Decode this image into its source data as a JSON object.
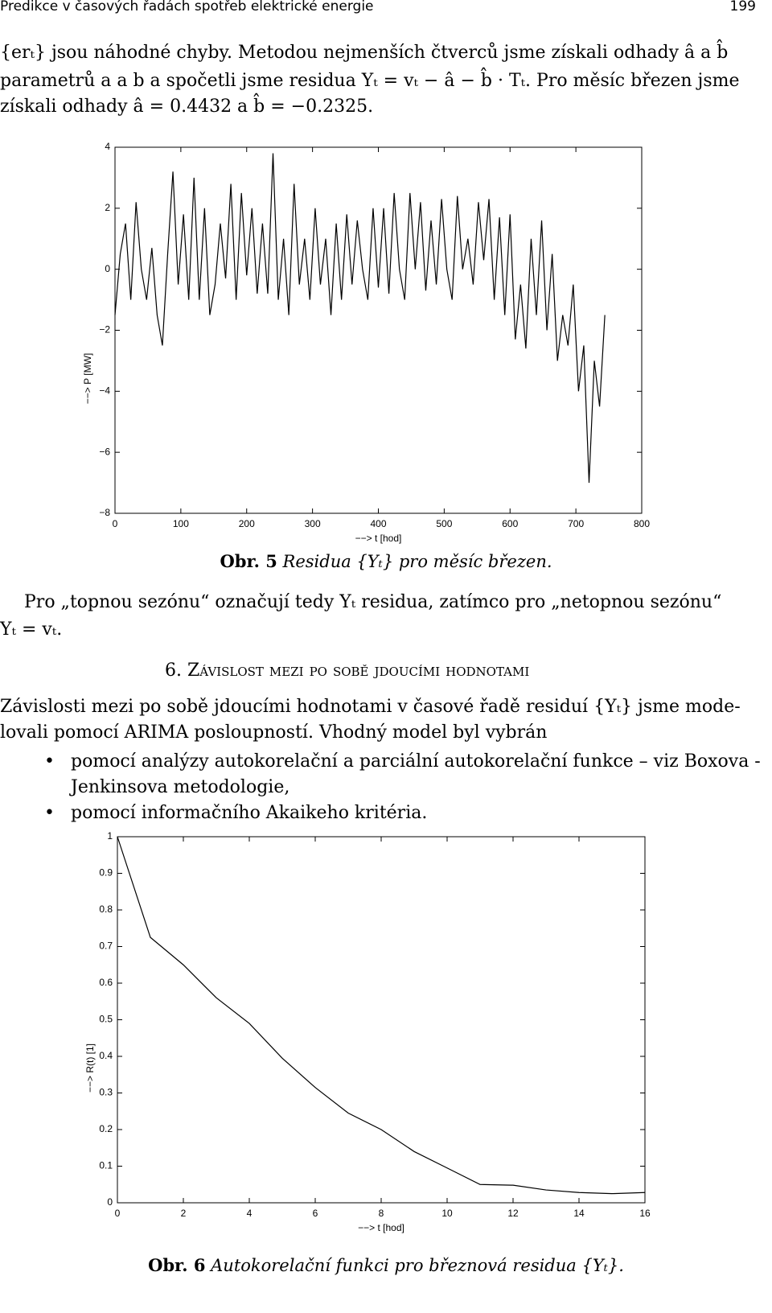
{
  "header": {
    "title": "Predikce v časových řadách spotřeb elektrické energie",
    "page": "199"
  },
  "intro": [
    "{erₜ} jsou náhodné chyby. Metodou nejmenších čtverců jsme získali odhady â a b̂",
    "parametrů a a b a spočetli jsme residua Yₜ = vₜ − â − b̂ · Tₜ. Pro měsíc březen jsme",
    "získali odhady â = 0.4432 a b̂ = −0.2325."
  ],
  "caption1": {
    "label": "Obr. 5",
    "text": "Residua {Yₜ} pro měsíc březen."
  },
  "para2": [
    "Pro „topnou sezónu“ označují tedy Yₜ residua, zatímco pro „netopnou sezónu“",
    "Yₜ = vₜ."
  ],
  "section": "6. Závislost mezi po sobě jdoucími hodnotami",
  "para3": [
    "Závislosti mezi po sobě jdoucími hodnotami v časové řadě residuí {Yₜ} jsme mode-",
    "lovali pomocí ARIMA posloupností. Vhodný model byl vybrán"
  ],
  "bullets": [
    [
      "pomocí analýzy autokorelační a parciální autokorelační funkce – viz Boxova -",
      "Jenkinsova metodologie,"
    ],
    [
      "pomocí informačního Akaikeho kritéria."
    ]
  ],
  "caption2": {
    "label": "Obr. 6",
    "text": "Autokorelační funkci pro březnová residua {Yₜ}."
  },
  "chart_data": [
    {
      "type": "line",
      "xlabel": "−−> t [hod]",
      "ylabel": "−−> P [MW]",
      "xlim": [
        0,
        800
      ],
      "ylim": [
        -8,
        4
      ],
      "xticks": [
        0,
        100,
        200,
        300,
        400,
        500,
        600,
        700,
        800
      ],
      "yticks": [
        {
          "value": -8,
          "label": "−8"
        },
        {
          "value": -6,
          "label": "−6"
        },
        {
          "value": -4,
          "label": "−4"
        },
        {
          "value": -2,
          "label": "−2"
        },
        0,
        2,
        4
      ],
      "color": "#000000",
      "x": [
        0,
        8,
        16,
        24,
        32,
        40,
        48,
        56,
        64,
        72,
        80,
        88,
        96,
        104,
        112,
        120,
        128,
        136,
        144,
        152,
        160,
        168,
        176,
        184,
        192,
        200,
        208,
        216,
        224,
        232,
        240,
        248,
        256,
        264,
        272,
        280,
        288,
        296,
        304,
        312,
        320,
        328,
        336,
        344,
        352,
        360,
        368,
        376,
        384,
        392,
        400,
        408,
        416,
        424,
        432,
        440,
        448,
        456,
        464,
        472,
        480,
        488,
        496,
        504,
        512,
        520,
        528,
        536,
        544,
        552,
        560,
        568,
        576,
        584,
        592,
        600,
        608,
        616,
        624,
        632,
        640,
        648,
        656,
        664,
        672,
        680,
        688,
        696,
        704,
        712,
        720,
        728,
        736,
        744
      ],
      "values": [
        -1.5,
        0.5,
        1.5,
        -1,
        2.2,
        0,
        -1,
        0.7,
        -1.5,
        -2.5,
        0.5,
        3.2,
        -0.5,
        1.8,
        -1,
        3,
        -1,
        2,
        -1.5,
        -0.5,
        1.5,
        -0.3,
        2.8,
        -1,
        2.5,
        -0.2,
        2,
        -0.8,
        1.5,
        -0.8,
        3.8,
        -1,
        1,
        -1.5,
        2.8,
        -0.5,
        1,
        -1,
        2,
        -0.5,
        1,
        -1.5,
        1.5,
        -1,
        1.8,
        -0.5,
        1.6,
        0,
        -1,
        2,
        -0.6,
        2,
        -0.8,
        2.5,
        0,
        -1,
        2.5,
        0,
        2.2,
        -0.7,
        1.6,
        -0.5,
        2.3,
        0,
        -1,
        2.4,
        0,
        1,
        -0.5,
        2.2,
        0.3,
        2.3,
        -1,
        1.7,
        -1.5,
        1.8,
        -2.3,
        -0.5,
        -2.6,
        1,
        -1.5,
        1.6,
        -2,
        0.5,
        -3,
        -1.5,
        -2.5,
        -0.5,
        -4,
        -2.5,
        -7,
        -3,
        -4.5,
        -1.5
      ]
    },
    {
      "type": "line",
      "xlabel": "−−> t [hod]",
      "ylabel": "−−> R(t) [1]",
      "xlim": [
        0,
        16
      ],
      "ylim": [
        0,
        1
      ],
      "xticks": [
        0,
        2,
        4,
        6,
        8,
        10,
        12,
        14,
        16
      ],
      "yticks": [
        0,
        0.1,
        0.2,
        0.3,
        0.4,
        0.5,
        0.6,
        0.7,
        0.8,
        0.9,
        1
      ],
      "color": "#000000",
      "x": [
        0,
        1,
        2,
        3,
        4,
        5,
        6,
        7,
        8,
        9,
        10,
        11,
        12,
        13,
        14,
        15,
        16
      ],
      "values": [
        1,
        0.725,
        0.65,
        0.56,
        0.49,
        0.395,
        0.315,
        0.245,
        0.2,
        0.14,
        0.095,
        0.05,
        0.048,
        0.035,
        0.028,
        0.025,
        0.028
      ]
    }
  ]
}
